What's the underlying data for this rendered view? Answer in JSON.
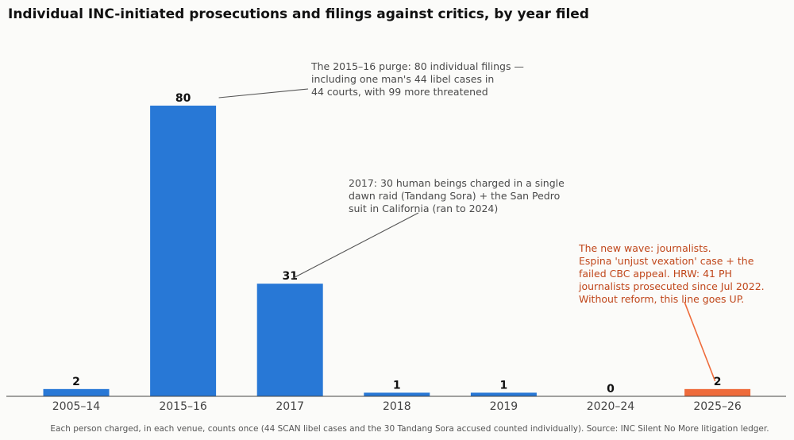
{
  "chart_data": {
    "type": "bar",
    "title": "Individual INC-initiated prosecutions and filings against critics, by year filed",
    "categories": [
      "2005–14",
      "2015–16",
      "2017",
      "2018",
      "2019",
      "2020–24",
      "2025–26"
    ],
    "values": [
      2,
      80,
      31,
      1,
      1,
      0,
      2
    ],
    "ylim": [
      0,
      80
    ],
    "grid": false,
    "colors": {
      "default": "#2878d6",
      "highlight": "#ee6b3b",
      "highlight_category": "2025–26"
    },
    "annotations": [
      {
        "category": "2015–16",
        "lines": [
          "The 2015–16 purge: 80 individual filings —",
          "including one man's 44 libel cases in",
          "44 courts, with 99 more threatened"
        ],
        "accent": false
      },
      {
        "category": "2017",
        "lines": [
          "2017: 30 human beings charged in a single",
          "dawn raid (Tandang Sora) + the San Pedro",
          "suit in California (ran to 2024)"
        ],
        "accent": false
      },
      {
        "category": "2025–26",
        "lines": [
          "The new wave: journalists.",
          "Espina 'unjust vexation' case + the",
          "failed CBC appeal. HRW: 41 PH",
          "journalists prosecuted since Jul 2022.",
          "Without reform, this line goes UP."
        ],
        "accent": true
      }
    ],
    "footnote": "Each person charged, in each venue, counts once (44 SCAN libel cases and the 30 Tandang Sora accused counted individually). Source: INC Silent No More litigation ledger."
  }
}
